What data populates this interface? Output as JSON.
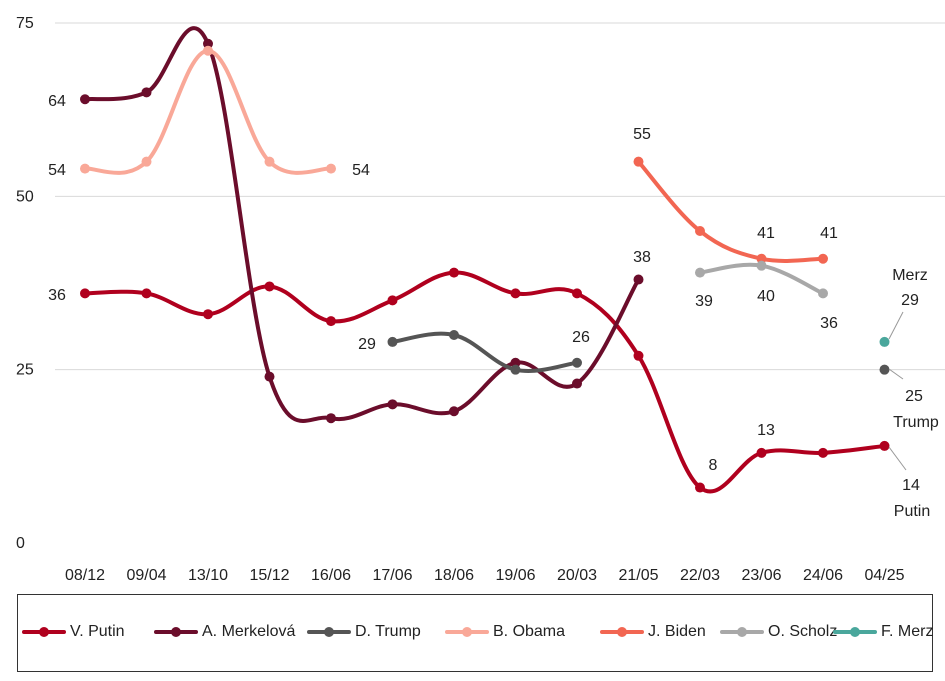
{
  "chart_data": {
    "type": "line",
    "categories": [
      "08/12",
      "09/04",
      "13/10",
      "15/12",
      "16/06",
      "17/06",
      "18/06",
      "19/06",
      "20/03",
      "21/05",
      "22/03",
      "23/06",
      "24/06",
      "04/25"
    ],
    "ylim": [
      0,
      75
    ],
    "yticks": [
      0,
      25,
      50,
      75
    ],
    "grid": true,
    "legend_position": "bottom",
    "series": [
      {
        "name": "V. Putin",
        "color": "#b0001e",
        "values": [
          36,
          36,
          33,
          37,
          32,
          35,
          39,
          36,
          36,
          27,
          8,
          13,
          13,
          14
        ]
      },
      {
        "name": "A. Merkelová",
        "color": "#6b0d2b",
        "values": [
          64,
          65,
          72,
          24,
          18,
          20,
          19,
          26,
          23,
          38,
          null,
          null,
          null,
          null
        ]
      },
      {
        "name": "D. Trump",
        "color": "#555555",
        "values": [
          null,
          null,
          null,
          null,
          null,
          29,
          30,
          25,
          26,
          null,
          null,
          null,
          null,
          25
        ]
      },
      {
        "name": "B. Obama",
        "color": "#f9a898",
        "values": [
          54,
          55,
          71,
          55,
          54,
          null,
          null,
          null,
          null,
          null,
          null,
          null,
          null,
          null
        ]
      },
      {
        "name": "J. Biden",
        "color": "#f26652",
        "values": [
          null,
          null,
          null,
          null,
          null,
          null,
          null,
          null,
          null,
          55,
          45,
          41,
          41,
          null
        ]
      },
      {
        "name": "O. Scholz",
        "color": "#a8a8a8",
        "values": [
          null,
          null,
          null,
          null,
          null,
          null,
          null,
          null,
          null,
          null,
          39,
          40,
          36,
          null
        ]
      },
      {
        "name": "F. Merz",
        "color": "#4aa79c",
        "values": [
          null,
          null,
          null,
          null,
          null,
          null,
          null,
          null,
          null,
          null,
          null,
          null,
          null,
          29
        ]
      }
    ],
    "annotations": [
      {
        "text": "64",
        "series": "A. Merkelová",
        "index": 0
      },
      {
        "text": "54",
        "series": "B. Obama",
        "index": 0
      },
      {
        "text": "36",
        "series": "V. Putin",
        "index": 0
      },
      {
        "text": "54",
        "series": "B. Obama",
        "index": 4
      },
      {
        "text": "29",
        "series": "D. Trump",
        "index": 5
      },
      {
        "text": "26",
        "series": "D. Trump",
        "index": 8
      },
      {
        "text": "38",
        "series": "A. Merkelová",
        "index": 9
      },
      {
        "text": "55",
        "series": "J. Biden",
        "index": 9
      },
      {
        "text": "8",
        "series": "V. Putin",
        "index": 10
      },
      {
        "text": "13",
        "series": "V. Putin",
        "index": 11
      },
      {
        "text": "39",
        "series": "O. Scholz",
        "index": 10
      },
      {
        "text": "41",
        "series": "J. Biden",
        "index": 11
      },
      {
        "text": "40",
        "series": "O. Scholz",
        "index": 11
      },
      {
        "text": "41",
        "series": "J. Biden",
        "index": 12
      },
      {
        "text": "36",
        "series": "O. Scholz",
        "index": 12
      },
      {
        "text": "Merz",
        "series": "F. Merz",
        "index": 13
      },
      {
        "text": "29",
        "series": "F. Merz",
        "index": 13
      },
      {
        "text": "25",
        "series": "D. Trump",
        "index": 13
      },
      {
        "text": "Trump",
        "series": "D. Trump",
        "index": 13
      },
      {
        "text": "14",
        "series": "V. Putin",
        "index": 13
      },
      {
        "text": "Putin",
        "series": "V. Putin",
        "index": 13
      }
    ]
  }
}
